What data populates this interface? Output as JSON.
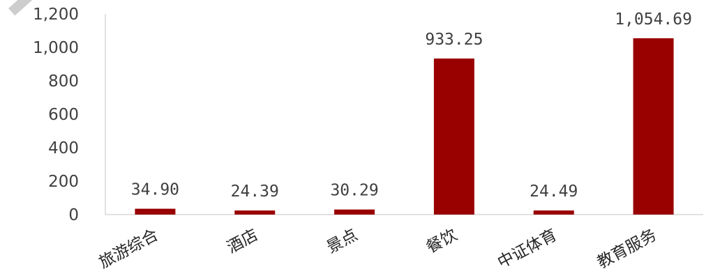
{
  "chart_data": {
    "type": "bar",
    "title": "",
    "xlabel": "",
    "ylabel": "",
    "categories": [
      "旅游综合",
      "酒店",
      "景点",
      "餐饮",
      "中证体育",
      "教育服务"
    ],
    "values": [
      34.9,
      24.39,
      30.29,
      933.25,
      24.49,
      1054.69
    ],
    "value_labels": [
      "34.90",
      "24.39",
      "30.29",
      "933.25",
      "24.49",
      "1,054.69"
    ],
    "ylim": [
      0,
      1200
    ],
    "yticks": [
      0,
      200,
      400,
      600,
      800,
      1000,
      1200
    ],
    "ytick_labels": [
      "0",
      "200",
      "400",
      "600",
      "800",
      "1,000",
      "1,200"
    ],
    "grid": false,
    "legend": "none",
    "bar_color": "#990000",
    "axis_color": "#d9d9d9"
  }
}
